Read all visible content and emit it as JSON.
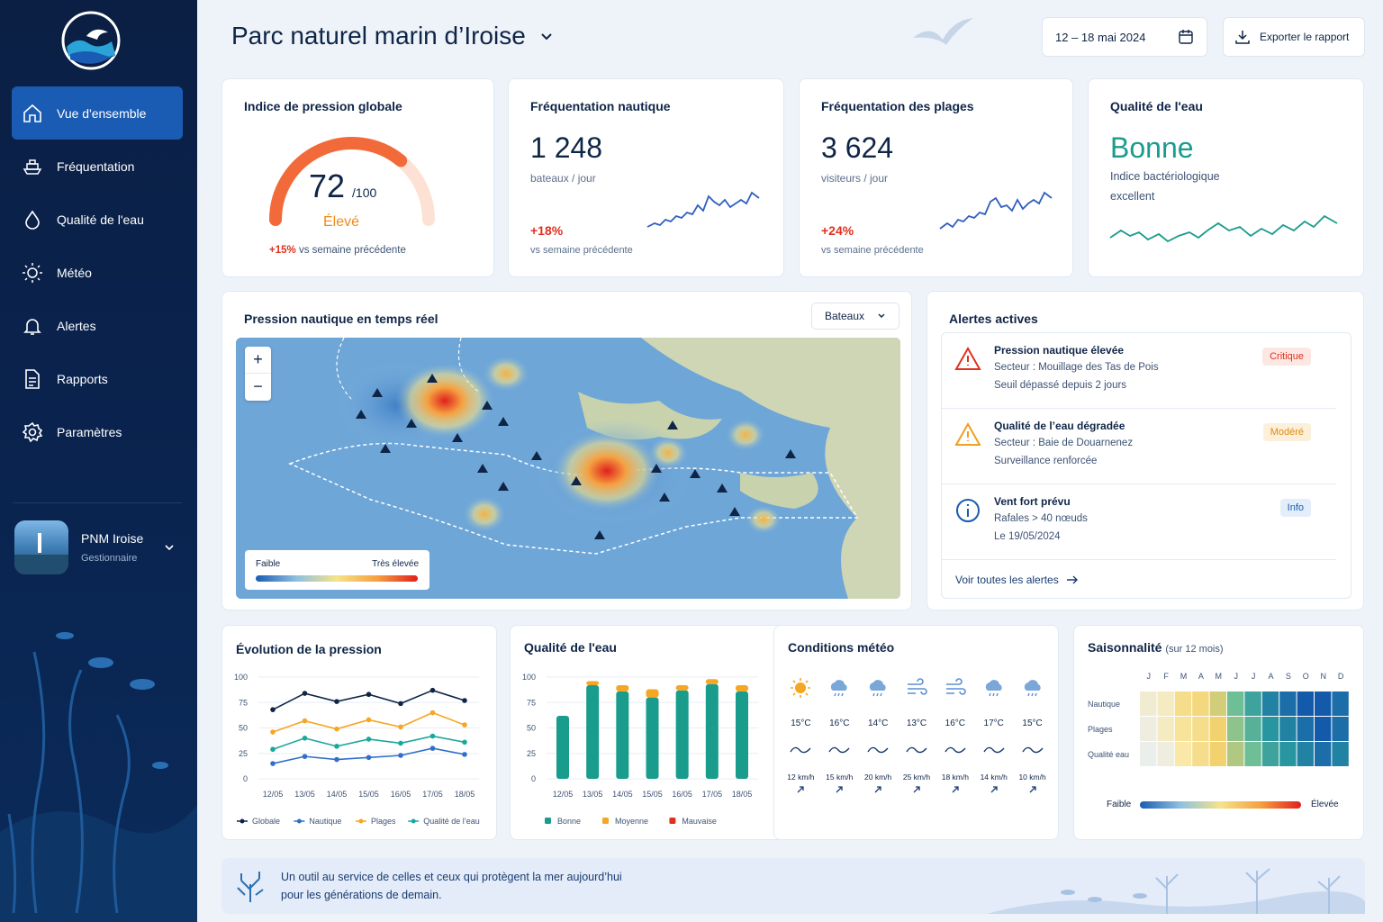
{
  "sidebar": {
    "items": [
      {
        "label": "Vue d'ensemble",
        "icon": "home-icon"
      },
      {
        "label": "Fréquentation",
        "icon": "boat-icon"
      },
      {
        "label": "Qualité de l'eau",
        "icon": "water-drop-icon"
      },
      {
        "label": "Météo",
        "icon": "sun-icon"
      },
      {
        "label": "Alertes",
        "icon": "bell-icon"
      },
      {
        "label": "Rapports",
        "icon": "document-icon"
      },
      {
        "label": "Paramètres",
        "icon": "gear-icon"
      }
    ],
    "profile": {
      "name": "PNM Iroise",
      "role": "Gestionnaire"
    }
  },
  "header": {
    "title": "Parc naturel marin d’Iroise",
    "date_range": "12 – 18 mai 2024",
    "export_label": "Exporter le rapport"
  },
  "kpi": {
    "pressure": {
      "title": "Indice de pression globale",
      "value": "72",
      "unit": "/100",
      "level": "Élevé",
      "delta": "+15%",
      "delta_note": "vs semaine précédente",
      "gauge_fraction": 0.72
    },
    "nautical": {
      "title": "Fréquentation nautique",
      "value": "1 248",
      "unit": "bateaux / jour",
      "delta": "+18%",
      "delta_note": "vs semaine précédente"
    },
    "beaches": {
      "title": "Fréquentation des plages",
      "value": "3 624",
      "unit": "visiteurs / jour",
      "delta": "+24%",
      "delta_note": "vs semaine précédente"
    },
    "water": {
      "title": "Qualité de l'eau",
      "value": "Bonne",
      "line1": "Indice bactériologique",
      "line2": "excellent"
    }
  },
  "map": {
    "title": "Pression nautique en temps réel",
    "filter": "Bateaux",
    "legend_low": "Faible",
    "legend_high": "Très élevée",
    "zoom_in": "+",
    "zoom_out": "−"
  },
  "alerts": {
    "title": "Alertes actives",
    "items": [
      {
        "title": "Pression nautique élevée",
        "line1": "Secteur : Mouillage des Tas de Pois",
        "line2": "Seuil dépassé depuis 2 jours",
        "badge": "Critique",
        "color": "#e0301e"
      },
      {
        "title": "Qualité de l’eau dégradée",
        "line1": "Secteur : Baie de Douarnenez",
        "line2": "Surveillance renforcée",
        "badge": "Modéré",
        "color": "#f0a020"
      },
      {
        "title": "Vent fort prévu",
        "line1": "Rafales > 40 nœuds",
        "line2": "Le 19/05/2024",
        "badge": "Info",
        "color": "#1a5bb3"
      }
    ],
    "see_all": "Voir toutes les alertes"
  },
  "pressure_chart": {
    "title": "Évolution de la pression",
    "yticks": [
      "100",
      "75",
      "50",
      "25",
      "0"
    ],
    "legend": [
      "Globale",
      "Nautique",
      "Plages",
      "Qualité de l’eau"
    ]
  },
  "water_chart": {
    "title": "Qualité de l'eau",
    "yticks": [
      "100",
      "75",
      "50",
      "25",
      "0"
    ],
    "legend": [
      "Bonne",
      "Moyenne",
      "Mauvaise"
    ]
  },
  "weather": {
    "title": "Conditions météo",
    "days": [
      {
        "temp": "15°C",
        "wind": "12 km/h",
        "icon": "sun-icon"
      },
      {
        "temp": "16°C",
        "wind": "15 km/h",
        "icon": "rain-cloud-icon"
      },
      {
        "temp": "14°C",
        "wind": "20 km/h",
        "icon": "rain-cloud-icon"
      },
      {
        "temp": "13°C",
        "wind": "25 km/h",
        "icon": "wind-icon"
      },
      {
        "temp": "16°C",
        "wind": "18 km/h",
        "icon": "wind-icon"
      },
      {
        "temp": "17°C",
        "wind": "14 km/h",
        "icon": "rain-cloud-icon"
      },
      {
        "temp": "15°C",
        "wind": "10 km/h",
        "icon": "rain-cloud-icon"
      }
    ]
  },
  "season": {
    "title": "Saisonnalité",
    "subtitle": "(sur 12 mois)",
    "months": [
      "J",
      "F",
      "M",
      "A",
      "M",
      "J",
      "J",
      "A",
      "S",
      "O",
      "N",
      "D"
    ],
    "rows": [
      "Nautique",
      "Plages",
      "Qualité eau"
    ],
    "legend_low": "Faible",
    "legend_high": "Élevée"
  },
  "footer": {
    "line1": "Un outil au service de celles et ceux qui protègent la mer aujourd’hui",
    "line2": "pour les générations de demain."
  },
  "chart_data": [
    {
      "type": "line",
      "title": "Évolution de la pression",
      "categories": [
        "12/05",
        "13/05",
        "14/05",
        "15/05",
        "16/05",
        "17/05",
        "18/05"
      ],
      "ylim": [
        0,
        100
      ],
      "series": [
        {
          "name": "Globale",
          "color": "#0f2547",
          "values": [
            68,
            84,
            76,
            83,
            74,
            87,
            77
          ]
        },
        {
          "name": "Plages",
          "color": "#f5a623",
          "values": [
            46,
            57,
            49,
            58,
            51,
            65,
            53
          ]
        },
        {
          "name": "Qualité de l’eau",
          "color": "#1aa89a",
          "values": [
            29,
            40,
            32,
            39,
            35,
            42,
            36
          ]
        },
        {
          "name": "Nautique",
          "color": "#2f6fc9",
          "values": [
            15,
            22,
            19,
            21,
            23,
            30,
            24
          ]
        }
      ]
    },
    {
      "type": "bar",
      "title": "Qualité de l'eau",
      "categories": [
        "12/05",
        "13/05",
        "14/05",
        "15/05",
        "16/05",
        "17/05",
        "18/05"
      ],
      "ylim": [
        0,
        100
      ],
      "series": [
        {
          "name": "Bonne",
          "color": "#1a9c8c",
          "values": [
            62,
            92,
            86,
            80,
            87,
            93,
            86
          ]
        },
        {
          "name": "Moyenne",
          "color": "#f5a623",
          "values": [
            0,
            4,
            6,
            8,
            5,
            5,
            6
          ]
        },
        {
          "name": "Mauvaise",
          "color": "#e0301e",
          "values": [
            0,
            0,
            0,
            0,
            0,
            0,
            0
          ]
        }
      ]
    },
    {
      "type": "heatmap",
      "title": "Saisonnalité",
      "x": [
        "J",
        "F",
        "M",
        "A",
        "M",
        "J",
        "J",
        "A",
        "S",
        "O",
        "N",
        "D"
      ],
      "y": [
        "Nautique",
        "Plages",
        "Qualité eau"
      ],
      "values": [
        [
          0.15,
          0.2,
          0.4,
          0.45,
          0.55,
          0.7,
          0.8,
          0.9,
          0.95,
          1.0,
          1.0,
          0.95
        ],
        [
          0.1,
          0.2,
          0.35,
          0.4,
          0.5,
          0.65,
          0.75,
          0.85,
          0.9,
          0.95,
          1.0,
          0.95
        ],
        [
          0.05,
          0.1,
          0.3,
          0.4,
          0.5,
          0.6,
          0.7,
          0.8,
          0.85,
          0.9,
          0.95,
          0.9
        ]
      ]
    }
  ]
}
